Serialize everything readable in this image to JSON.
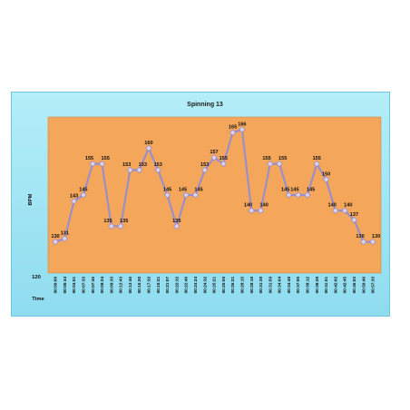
{
  "chart_data": {
    "type": "line",
    "title": "Spinning 13",
    "xlabel": "Time",
    "ylabel": "BPM",
    "ylim": [
      120,
      170
    ],
    "y_tick_labels": [
      "120"
    ],
    "grid": false,
    "legend": "none",
    "colors": {
      "plot_background": "#f4a65a",
      "frame_background": "#a8e6f4",
      "line": "#9b8fc9",
      "marker": "#d9d2f0"
    },
    "x": [
      "00:00:00",
      "00:00:44",
      "00:04:51",
      "00:07:33",
      "00:07:45",
      "00:08:24",
      "00:09:33",
      "00:12:43",
      "00:13:46",
      "00:15:20",
      "00:17:32",
      "00:18:21",
      "00:21:07",
      "00:22:32",
      "00:22:46",
      "00:24:24",
      "00:24:32",
      "00:25:21",
      "00:25:59",
      "00:26:21",
      "00:28:15",
      "00:28:19",
      "00:31:38",
      "00:31:59",
      "00:34:04",
      "00:34:48",
      "00:37:00",
      "00:38:12",
      "00:38:28",
      "00:41:51",
      "00:42:02",
      "00:42:45",
      "00:45:03",
      "00:50:46",
      "00:57:33"
    ],
    "values": [
      130,
      131,
      143,
      145,
      155,
      155,
      135,
      135,
      153,
      153,
      160,
      153,
      145,
      135,
      145,
      145,
      153,
      157,
      155,
      165,
      166,
      140,
      140,
      155,
      155,
      145,
      145,
      145,
      155,
      150,
      140,
      140,
      137,
      130,
      130
    ],
    "data_labels": [
      "130",
      "131",
      "143",
      "145",
      "155",
      "155",
      "135",
      "135",
      "153",
      "153",
      "160",
      "153",
      "145",
      "135",
      "145",
      "145",
      "153",
      "157",
      "155",
      "165",
      "166",
      "140",
      "140",
      "155",
      "155",
      "145",
      "145",
      "145",
      "155",
      "150",
      "140",
      "140",
      "137",
      "130",
      "130"
    ]
  }
}
